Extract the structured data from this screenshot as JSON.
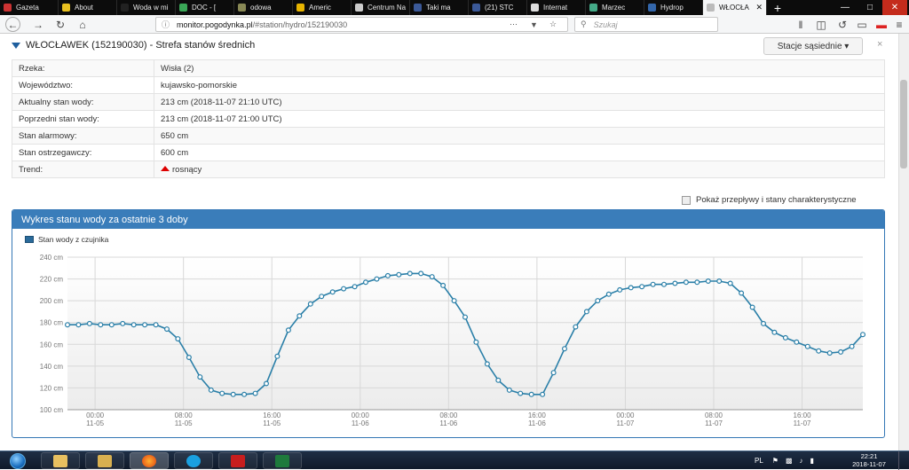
{
  "browser": {
    "tabs": [
      {
        "label": "Gazeta",
        "color": "#c33"
      },
      {
        "label": "About",
        "color": "#e8c020"
      },
      {
        "label": "Woda w mi",
        "color": "#222"
      },
      {
        "label": "DOC - [",
        "color": "#3aa757"
      },
      {
        "label": "odowa",
        "color": "#885"
      },
      {
        "label": "Americ",
        "color": "#e7b400"
      },
      {
        "label": "Centrum Na",
        "color": "#ccc"
      },
      {
        "label": "Taki ma",
        "color": "#3b5998"
      },
      {
        "label": "(21) STC",
        "color": "#3b5998"
      },
      {
        "label": "Internat",
        "color": "#ddd"
      },
      {
        "label": "Marzec",
        "color": "#4a8"
      },
      {
        "label": "Hydrop",
        "color": "#36a"
      },
      {
        "label": "WŁOCŁA",
        "color": "#bbb"
      }
    ],
    "active_tab_close": "✕",
    "new_tab": "+",
    "url_host": "monitor.pogodynka.pl",
    "url_path": "/#station/hydro/152190030",
    "search_placeholder": "Szukaj"
  },
  "station": {
    "title": "WŁOCŁAWEK (152190030) - Strefa stanów średnich",
    "neighbors_button": "Stacje sąsiednie ▾",
    "close": "×"
  },
  "info_rows": [
    {
      "key": "Rzeka:",
      "value": "Wisła (2)"
    },
    {
      "key": "Województwo:",
      "value": "kujawsko-pomorskie"
    },
    {
      "key": "Aktualny stan wody:",
      "value": "213 cm (2018-11-07 21:10 UTC)"
    },
    {
      "key": "Poprzedni stan wody:",
      "value": "213 cm (2018-11-07 21:00 UTC)"
    },
    {
      "key": "Stan alarmowy:",
      "value": "650 cm"
    },
    {
      "key": "Stan ostrzegawczy:",
      "value": "600 cm"
    },
    {
      "key": "Trend:",
      "value": "rosnący"
    }
  ],
  "show_flows_label": "Pokaż przepływy i stany charakterystyczne",
  "panel_title": "Wykres stanu wody za ostatnie 3 doby",
  "legend_label": "Stan wody z czujnika",
  "colors": {
    "series": "#2a7fa8",
    "panel": "#3a7dba"
  },
  "chart_data": {
    "type": "line",
    "title": "Wykres stanu wody za ostatnie 3 doby",
    "ylim": [
      100,
      240
    ],
    "yticks": [
      "100 cm",
      "120 cm",
      "140 cm",
      "160 cm",
      "180 cm",
      "200 cm",
      "220 cm",
      "240 cm"
    ],
    "xticks": [
      {
        "time": "00:00",
        "date": "11-05"
      },
      {
        "time": "08:00",
        "date": "11-05"
      },
      {
        "time": "16:00",
        "date": "11-05"
      },
      {
        "time": "00:00",
        "date": "11-06"
      },
      {
        "time": "08:00",
        "date": "11-06"
      },
      {
        "time": "16:00",
        "date": "11-06"
      },
      {
        "time": "00:00",
        "date": "11-07"
      },
      {
        "time": "08:00",
        "date": "11-07"
      },
      {
        "time": "16:00",
        "date": "11-07"
      }
    ],
    "x_hours_range": [
      -2.5,
      69.5
    ],
    "series": [
      {
        "name": "Stan wody z czujnika",
        "x_hours": [
          -2.5,
          -1.5,
          -0.5,
          0.5,
          1.5,
          2.5,
          3.5,
          4.5,
          5.5,
          6.5,
          7.5,
          8.5,
          9.5,
          10.5,
          11.5,
          12.5,
          13.5,
          14.5,
          15.5,
          16.5,
          17.5,
          18.5,
          19.5,
          20.5,
          21.5,
          22.5,
          23.5,
          24.5,
          25.5,
          26.5,
          27.5,
          28.5,
          29.5,
          30.5,
          31.5,
          32.5,
          33.5,
          34.5,
          35.5,
          36.5,
          37.5,
          38.5,
          39.5,
          40.5,
          41.5,
          42.5,
          43.5,
          44.5,
          45.5,
          46.5,
          47.5,
          48.5,
          49.5,
          50.5,
          51.5,
          52.5,
          53.5,
          54.5,
          55.5,
          56.5,
          57.5,
          58.5,
          59.5,
          60.5,
          61.5,
          62.5,
          63.5,
          64.5,
          65.5,
          66.5,
          67.5,
          68.5,
          69.5
        ],
        "values": [
          178,
          178,
          179,
          178,
          178,
          179,
          178,
          178,
          178,
          174,
          165,
          148,
          130,
          118,
          115,
          114,
          114,
          115,
          124,
          149,
          173,
          186,
          197,
          204,
          208,
          211,
          213,
          217,
          220,
          223,
          224,
          225,
          225,
          222,
          214,
          200,
          185,
          162,
          142,
          127,
          118,
          115,
          114,
          114,
          134,
          156,
          176,
          190,
          200,
          206,
          210,
          212,
          213,
          215,
          215,
          216,
          217,
          217,
          218,
          218,
          216,
          207,
          194,
          179,
          171,
          166,
          162,
          158,
          154,
          152,
          153,
          158,
          169
        ]
      }
    ]
  },
  "taskbar": {
    "lang": "PL",
    "time": "22:21",
    "date": "2018-11-07"
  }
}
